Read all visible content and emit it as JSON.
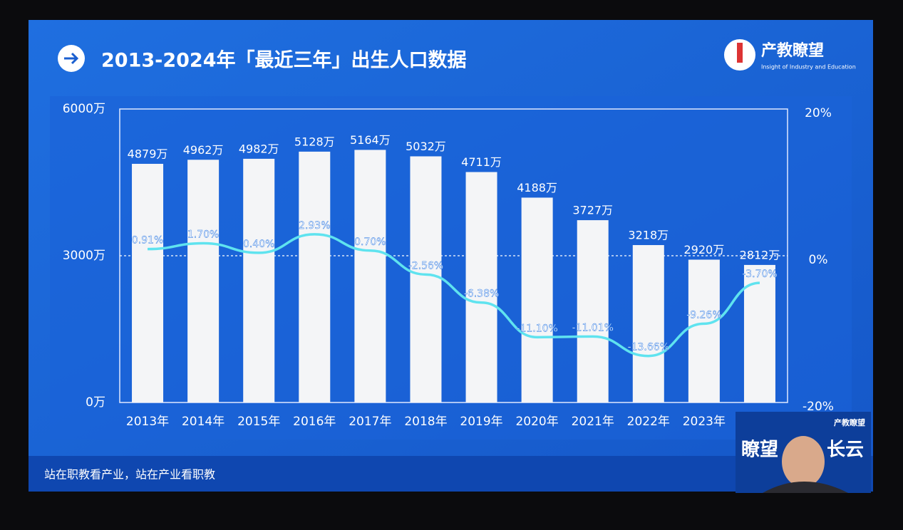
{
  "header": {
    "title": "2013-2024年「最近三年」出生人口数据",
    "logo": "产教瞭望",
    "logo_subtitle": "Insight of Industry and Education"
  },
  "footer": "站在职教看产业，站在产业看职教",
  "webcam": {
    "logo": "产教瞭望",
    "name_left": "瞭望",
    "name_right": "长云"
  },
  "chart_data": {
    "type": "bar",
    "categories": [
      "2013年",
      "2014年",
      "2015年",
      "2016年",
      "2017年",
      "2018年",
      "2019年",
      "2020年",
      "2021年",
      "2022年",
      "2023年",
      null
    ],
    "series": [
      {
        "type": "bar",
        "color": "#f4f5f7",
        "values": [
          4879,
          4962,
          4982,
          5128,
          5164,
          5032,
          4711,
          4188,
          3727,
          3218,
          2920,
          2812
        ],
        "value_labels": [
          "4879万",
          "4962万",
          "4982万",
          "5128万",
          "5164万",
          "5032万",
          "4711万",
          "4188万",
          "3727万",
          "3218万",
          "2920万",
          "2812万"
        ]
      },
      {
        "type": "line",
        "axis": "y2",
        "color": "#5fe3ef",
        "values": [
          0.91,
          1.7,
          0.4,
          2.93,
          0.7,
          -2.56,
          -6.38,
          -11.1,
          -11.01,
          -13.66,
          -9.26,
          -3.7
        ],
        "value_labels": [
          "0.91%",
          "1.70%",
          "0.40%",
          "2.93%",
          "0.70%",
          "-2.56%",
          "-6.38%",
          "-11.10%",
          "-11.01%",
          "-13.66%",
          "-9.26%",
          "-3.70%"
        ]
      }
    ],
    "ylim": [
      0,
      6000
    ],
    "yticks": [
      {
        "value": 0,
        "label": "0万"
      },
      {
        "value": 3000,
        "label": "3000万"
      },
      {
        "value": 6000,
        "label": "6000万"
      }
    ],
    "y2lim": [
      -20,
      20
    ],
    "y2ticks": [
      {
        "value": -20,
        "label": "-20%"
      },
      {
        "value": 0,
        "label": "0%"
      },
      {
        "value": 20,
        "label": "20%"
      }
    ]
  }
}
